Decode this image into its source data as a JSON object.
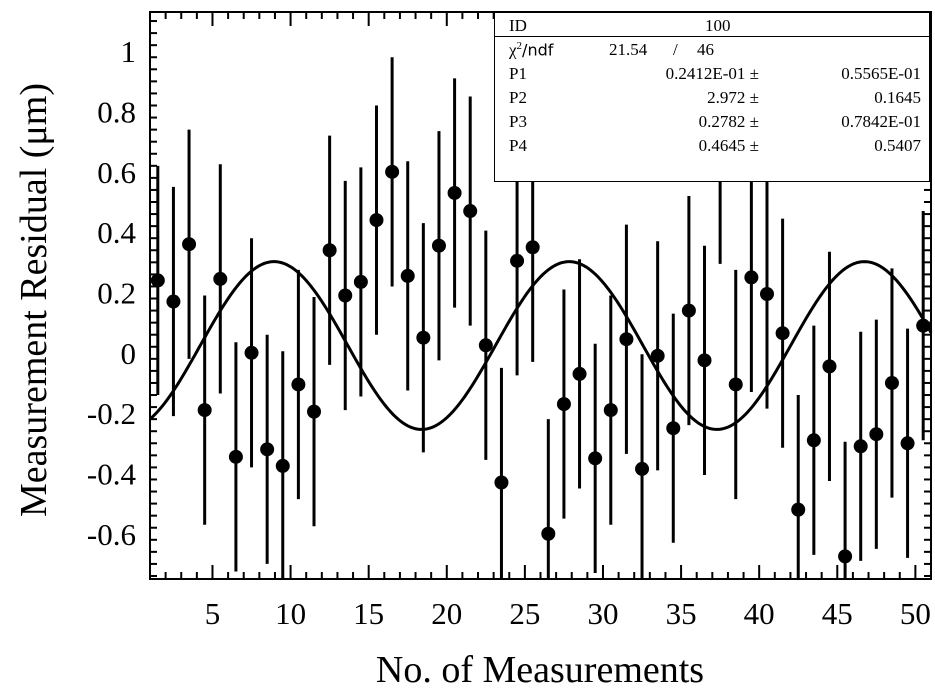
{
  "chart_data": {
    "type": "scatter",
    "xlabel": "No. of Measurements",
    "ylabel": "Measurement Residual (μm)",
    "xlim": [
      1,
      51
    ],
    "ylim": [
      -0.75,
      1.13
    ],
    "x_ticks": [
      "5",
      "10",
      "15",
      "20",
      "25",
      "30",
      "35",
      "40",
      "45",
      "50"
    ],
    "y_ticks": [
      "-0.6",
      "-0.4",
      "-0.2",
      "0",
      "0.2",
      "0.4",
      "0.6",
      "0.8",
      "1"
    ],
    "points": [
      {
        "x": 1.5,
        "y": 0.24,
        "err": 0.38
      },
      {
        "x": 2.5,
        "y": 0.17,
        "err": 0.38
      },
      {
        "x": 3.5,
        "y": 0.36,
        "err": 0.38
      },
      {
        "x": 4.5,
        "y": -0.19,
        "err": 0.38
      },
      {
        "x": 5.5,
        "y": 0.245,
        "err": 0.38
      },
      {
        "x": 6.5,
        "y": -0.345,
        "err": 0.38
      },
      {
        "x": 7.5,
        "y": 0.0,
        "err": 0.38
      },
      {
        "x": 8.5,
        "y": -0.32,
        "err": 0.38
      },
      {
        "x": 9.5,
        "y": -0.375,
        "err": 0.38
      },
      {
        "x": 10.5,
        "y": -0.105,
        "err": 0.38
      },
      {
        "x": 11.5,
        "y": -0.195,
        "err": 0.38
      },
      {
        "x": 12.5,
        "y": 0.34,
        "err": 0.38
      },
      {
        "x": 13.5,
        "y": 0.19,
        "err": 0.38
      },
      {
        "x": 14.5,
        "y": 0.235,
        "err": 0.38
      },
      {
        "x": 15.5,
        "y": 0.44,
        "err": 0.38
      },
      {
        "x": 16.5,
        "y": 0.6,
        "err": 0.38
      },
      {
        "x": 17.5,
        "y": 0.255,
        "err": 0.38
      },
      {
        "x": 18.5,
        "y": 0.05,
        "err": 0.38
      },
      {
        "x": 19.5,
        "y": 0.355,
        "err": 0.38
      },
      {
        "x": 20.5,
        "y": 0.53,
        "err": 0.38
      },
      {
        "x": 21.5,
        "y": 0.47,
        "err": 0.38
      },
      {
        "x": 22.5,
        "y": 0.025,
        "err": 0.38
      },
      {
        "x": 23.5,
        "y": -0.43,
        "err": 0.38
      },
      {
        "x": 24.5,
        "y": 0.305,
        "err": 0.38
      },
      {
        "x": 25.5,
        "y": 0.35,
        "err": 0.38
      },
      {
        "x": 26.5,
        "y": -0.6,
        "err": 0.38
      },
      {
        "x": 27.5,
        "y": -0.17,
        "err": 0.38
      },
      {
        "x": 28.5,
        "y": -0.07,
        "err": 0.38
      },
      {
        "x": 29.5,
        "y": -0.35,
        "err": 0.38
      },
      {
        "x": 30.5,
        "y": -0.19,
        "err": 0.38
      },
      {
        "x": 31.5,
        "y": 0.045,
        "err": 0.38
      },
      {
        "x": 32.5,
        "y": -0.385,
        "err": 0.38
      },
      {
        "x": 33.5,
        "y": -0.01,
        "err": 0.38
      },
      {
        "x": 34.5,
        "y": -0.25,
        "err": 0.38
      },
      {
        "x": 35.5,
        "y": 0.14,
        "err": 0.38
      },
      {
        "x": 36.5,
        "y": -0.025,
        "err": 0.38
      },
      {
        "x": 37.5,
        "y": 0.675,
        "err": 0.38
      },
      {
        "x": 38.5,
        "y": -0.105,
        "err": 0.38
      },
      {
        "x": 39.5,
        "y": 0.25,
        "err": 0.38
      },
      {
        "x": 40.5,
        "y": 0.195,
        "err": 0.38
      },
      {
        "x": 41.5,
        "y": 0.065,
        "err": 0.38
      },
      {
        "x": 42.5,
        "y": -0.52,
        "err": 0.38
      },
      {
        "x": 43.5,
        "y": -0.29,
        "err": 0.38
      },
      {
        "x": 44.5,
        "y": -0.045,
        "err": 0.38
      },
      {
        "x": 45.5,
        "y": -0.675,
        "err": 0.38
      },
      {
        "x": 46.5,
        "y": -0.31,
        "err": 0.38
      },
      {
        "x": 47.5,
        "y": -0.27,
        "err": 0.38
      },
      {
        "x": 48.5,
        "y": -0.1,
        "err": 0.38
      },
      {
        "x": 49.5,
        "y": -0.3,
        "err": 0.38
      },
      {
        "x": 50.5,
        "y": 0.09,
        "err": 0.38
      }
    ],
    "fit": {
      "type": "sine",
      "P1": 0.02412,
      "P2": 2.972,
      "P3": 0.2782,
      "P4": 0.4645,
      "period_measurements": 18.9
    },
    "colors": {
      "markers": "#000000",
      "fit_line": "#000000"
    }
  },
  "stats": {
    "id_label": "ID",
    "id_value": "100",
    "chi_label_sym": "χ",
    "chi_label_sup": "2",
    "chi_label_rest": "/ndf",
    "chi_value": "21.54",
    "chi_slash": "/",
    "ndf_value": "46",
    "params": [
      {
        "name": "P1",
        "value": "0.2412E-01 ±",
        "error": "0.5565E-01"
      },
      {
        "name": "P2",
        "value": "2.972 ±",
        "error": "0.1645"
      },
      {
        "name": "P3",
        "value": "0.2782 ±",
        "error": "0.7842E-01"
      },
      {
        "name": "P4",
        "value": "0.4645 ±",
        "error": "0.5407"
      }
    ]
  }
}
